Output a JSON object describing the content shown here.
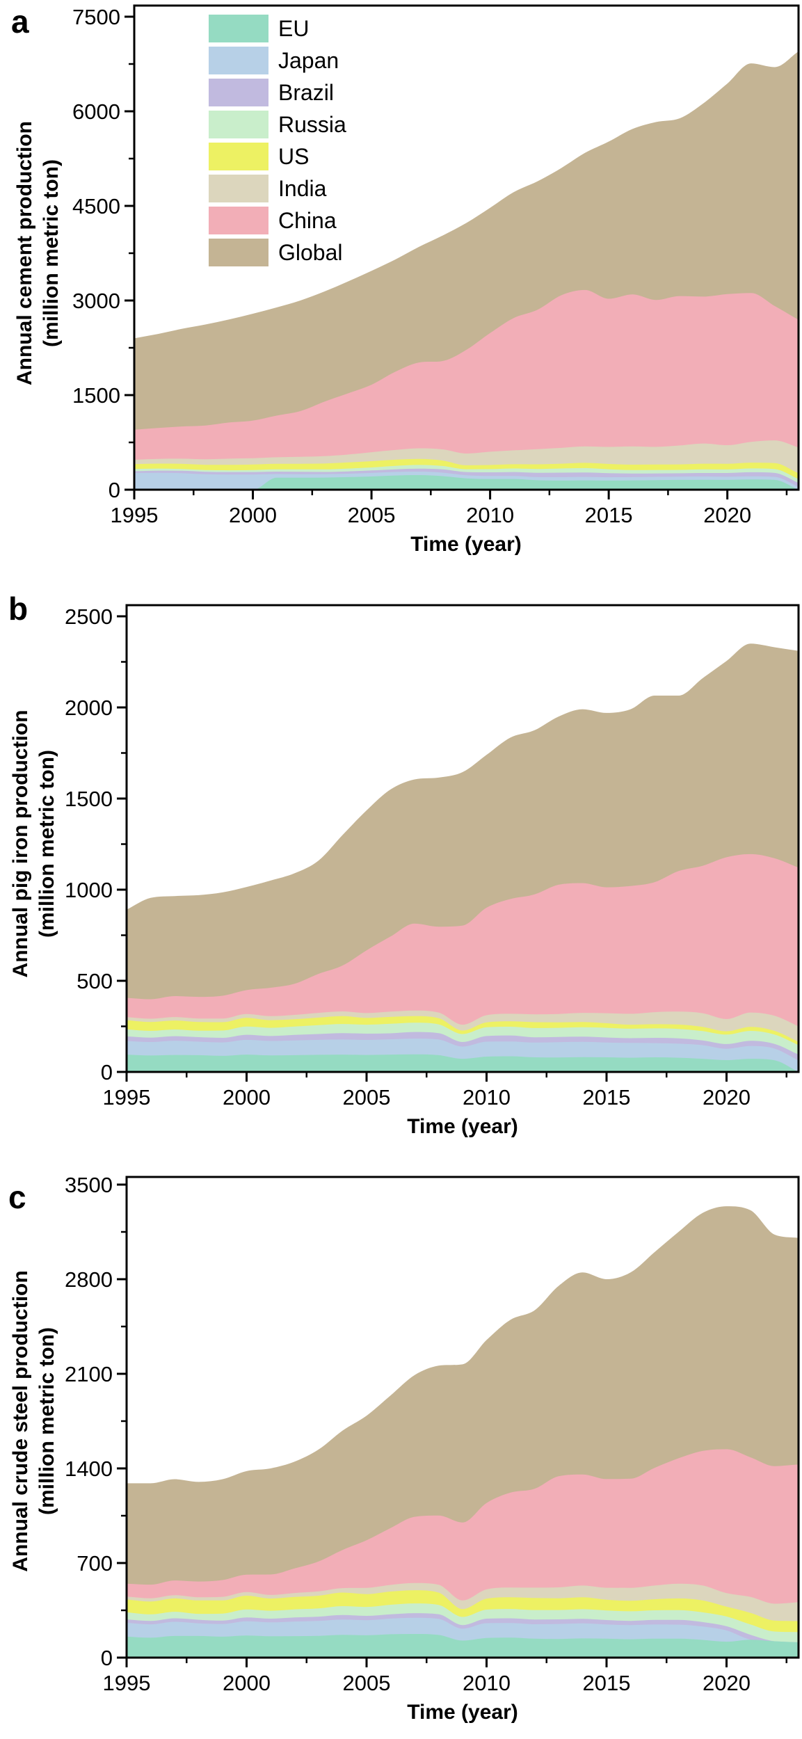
{
  "years": [
    1995,
    1996,
    1997,
    1998,
    1999,
    2000,
    2001,
    2002,
    2003,
    2004,
    2005,
    2006,
    2007,
    2008,
    2009,
    2010,
    2011,
    2012,
    2013,
    2014,
    2015,
    2016,
    2017,
    2018,
    2019,
    2020,
    2021,
    2022,
    2023
  ],
  "legend": {
    "items": [
      {
        "label": "EU",
        "color": "#95dbc2"
      },
      {
        "label": "Japan",
        "color": "#b7d0e7"
      },
      {
        "label": "Brazil",
        "color": "#c1badf"
      },
      {
        "label": "Russia",
        "color": "#c9eecb"
      },
      {
        "label": "US",
        "color": "#edf163"
      },
      {
        "label": "India",
        "color": "#dcd6bd"
      },
      {
        "label": "China",
        "color": "#f2aeb7"
      },
      {
        "label": "Global",
        "color": "#c4b494"
      }
    ]
  },
  "chart_data": [
    {
      "type": "area",
      "stacked": true,
      "panel_label": "a",
      "ylabel_line1": "Annual cement production",
      "ylabel_line2": "(million metric ton)",
      "xlabel": "Time (year)",
      "ylim": [
        0,
        7500
      ],
      "y_major_step": 1500,
      "y_minor_step": 750,
      "x_range": [
        1995,
        2023
      ],
      "x_major_ticks": [
        1995,
        2000,
        2005,
        2010,
        2015,
        2020
      ],
      "legend_position": "top-left-inside",
      "grid": false,
      "series": [
        {
          "name": "EU",
          "color": "#95dbc2",
          "values": [
            0,
            0,
            0,
            0,
            0,
            0,
            190,
            190,
            192,
            200,
            210,
            225,
            232,
            215,
            180,
            170,
            170,
            150,
            145,
            148,
            145,
            148,
            152,
            155,
            158,
            155,
            162,
            155,
            0
          ]
        },
        {
          "name": "Japan",
          "color": "#b7d0e7",
          "values": [
            265,
            268,
            262,
            245,
            240,
            240,
            58,
            56,
            55,
            54,
            56,
            56,
            55,
            55,
            48,
            47,
            47,
            50,
            55,
            55,
            52,
            52,
            52,
            52,
            52,
            50,
            50,
            48,
            45
          ]
        },
        {
          "name": "Brazil",
          "color": "#c1badf",
          "values": [
            28,
            34,
            38,
            40,
            40,
            40,
            39,
            38,
            34,
            36,
            39,
            42,
            46,
            52,
            52,
            59,
            63,
            68,
            70,
            71,
            65,
            57,
            54,
            53,
            55,
            60,
            65,
            63,
            62
          ]
        },
        {
          "name": "Russia",
          "color": "#c9eecb",
          "values": [
            36,
            33,
            28,
            26,
            28,
            32,
            35,
            38,
            41,
            45,
            48,
            54,
            60,
            54,
            44,
            50,
            56,
            61,
            66,
            69,
            62,
            55,
            55,
            54,
            58,
            56,
            60,
            61,
            62
          ]
        },
        {
          "name": "US",
          "color": "#edf163",
          "values": [
            76,
            79,
            82,
            84,
            86,
            88,
            89,
            89,
            93,
            97,
            99,
            98,
            95,
            86,
            63,
            66,
            68,
            74,
            77,
            83,
            84,
            85,
            86,
            87,
            89,
            90,
            92,
            95,
            91
          ]
        },
        {
          "name": "India",
          "color": "#dcd6bd",
          "values": [
            70,
            75,
            82,
            87,
            98,
            99,
            103,
            110,
            117,
            125,
            143,
            155,
            168,
            178,
            187,
            210,
            220,
            240,
            250,
            260,
            270,
            290,
            280,
            300,
            320,
            295,
            330,
            360,
            410
          ]
        },
        {
          "name": "China",
          "color": "#f2aeb7",
          "values": [
            476,
            490,
            511,
            536,
            573,
            597,
            661,
            725,
            862,
            970,
            1069,
            1240,
            1361,
            1400,
            1644,
            1882,
            2099,
            2210,
            2420,
            2480,
            2350,
            2410,
            2330,
            2370,
            2330,
            2395,
            2360,
            2130,
            2023
          ]
        },
        {
          "name": "Global",
          "color": "#c4b494",
          "values": [
            1449,
            1491,
            1547,
            1602,
            1635,
            1694,
            1715,
            1754,
            1746,
            1773,
            1806,
            1780,
            1833,
            1990,
            2012,
            1986,
            1997,
            2037,
            2017,
            2174,
            2492,
            2623,
            2821,
            2819,
            3068,
            3339,
            3641,
            3788,
            4257
          ]
        }
      ]
    },
    {
      "type": "area",
      "stacked": true,
      "panel_label": "b",
      "ylabel_line1": "Annual pig iron production",
      "ylabel_line2": "(million metric ton)",
      "xlabel": "Time (year)",
      "ylim": [
        0,
        2500
      ],
      "y_major_step": 500,
      "y_minor_step": 250,
      "x_range": [
        1995,
        2023
      ],
      "x_major_ticks": [
        1995,
        2000,
        2005,
        2010,
        2015,
        2020
      ],
      "grid": false,
      "series": [
        {
          "name": "EU",
          "color": "#95dbc2",
          "values": [
            95,
            90,
            93,
            92,
            88,
            95,
            91,
            92,
            94,
            95,
            93,
            95,
            96,
            92,
            72,
            84,
            86,
            80,
            79,
            81,
            80,
            78,
            80,
            78,
            72,
            65,
            72,
            64,
            0
          ]
        },
        {
          "name": "Japan",
          "color": "#b7d0e7",
          "values": [
            75,
            74,
            78,
            74,
            74,
            81,
            79,
            81,
            82,
            83,
            83,
            84,
            87,
            86,
            67,
            82,
            81,
            81,
            84,
            84,
            81,
            81,
            78,
            77,
            75,
            62,
            70,
            64,
            63
          ]
        },
        {
          "name": "Brazil",
          "color": "#c1badf",
          "values": [
            25,
            24,
            25,
            25,
            25,
            28,
            27,
            30,
            32,
            35,
            34,
            33,
            36,
            35,
            25,
            31,
            33,
            29,
            29,
            29,
            28,
            26,
            29,
            29,
            26,
            26,
            29,
            26,
            32
          ]
        },
        {
          "name": "Russia",
          "color": "#c9eecb",
          "values": [
            39,
            37,
            37,
            35,
            40,
            45,
            45,
            46,
            49,
            50,
            49,
            52,
            51,
            48,
            44,
            48,
            48,
            51,
            50,
            51,
            53,
            52,
            52,
            52,
            51,
            52,
            54,
            51,
            52
          ]
        },
        {
          "name": "US",
          "color": "#edf163",
          "values": [
            50,
            49,
            49,
            48,
            46,
            48,
            42,
            40,
            41,
            43,
            37,
            38,
            36,
            34,
            19,
            27,
            30,
            32,
            30,
            29,
            25,
            22,
            23,
            24,
            23,
            18,
            22,
            20,
            18
          ]
        },
        {
          "name": "India",
          "color": "#dcd6bd",
          "values": [
            17,
            18,
            19,
            19,
            20,
            21,
            22,
            24,
            26,
            26,
            27,
            29,
            31,
            31,
            32,
            39,
            41,
            43,
            46,
            50,
            55,
            60,
            66,
            71,
            75,
            67,
            79,
            83,
            85
          ]
        },
        {
          "name": "China",
          "color": "#f2aeb7",
          "values": [
            105,
            107,
            115,
            119,
            125,
            131,
            156,
            171,
            214,
            252,
            344,
            412,
            477,
            471,
            544,
            590,
            630,
            658,
            709,
            712,
            691,
            701,
            713,
            771,
            809,
            888,
            869,
            864,
            871
          ]
        },
        {
          "name": "Global",
          "color": "#c4b494",
          "values": [
            484,
            556,
            549,
            558,
            567,
            566,
            588,
            606,
            622,
            716,
            768,
            807,
            791,
            818,
            842,
            839,
            886,
            901,
            923,
            954,
            957,
            970,
            1024,
            963,
            1029,
            1077,
            1155,
            1158,
            1189
          ]
        }
      ]
    },
    {
      "type": "area",
      "stacked": true,
      "panel_label": "c",
      "ylabel_line1": "Annual crude steel production",
      "ylabel_line2": "(million metric ton)",
      "xlabel": "Time (year)",
      "ylim": [
        0,
        3500
      ],
      "y_major_step": 700,
      "y_minor_step": 350,
      "x_range": [
        1995,
        2023
      ],
      "x_major_ticks": [
        1995,
        2000,
        2005,
        2010,
        2015,
        2020
      ],
      "grid": false,
      "series": [
        {
          "name": "EU",
          "color": "#95dbc2",
          "values": [
            156,
            147,
            160,
            160,
            155,
            163,
            158,
            159,
            161,
            169,
            165,
            173,
            175,
            168,
            126,
            145,
            148,
            140,
            138,
            142,
            140,
            136,
            140,
            140,
            131,
            118,
            133,
            121,
            113
          ]
        },
        {
          "name": "Japan",
          "color": "#b7d0e7",
          "values": [
            102,
            99,
            105,
            94,
            94,
            106,
            103,
            108,
            111,
            113,
            112,
            116,
            120,
            119,
            88,
            110,
            108,
            107,
            111,
            111,
            105,
            105,
            105,
            104,
            99,
            83,
            0,
            0,
            0
          ]
        },
        {
          "name": "Brazil",
          "color": "#c1badf",
          "values": [
            25,
            25,
            26,
            26,
            25,
            28,
            27,
            30,
            31,
            33,
            32,
            31,
            34,
            34,
            27,
            33,
            35,
            35,
            34,
            34,
            33,
            31,
            34,
            35,
            33,
            31,
            36,
            0,
            0
          ]
        },
        {
          "name": "Russia",
          "color": "#c9eecb",
          "values": [
            52,
            49,
            48,
            44,
            52,
            59,
            59,
            60,
            61,
            66,
            66,
            71,
            72,
            69,
            60,
            67,
            69,
            70,
            69,
            71,
            71,
            71,
            71,
            72,
            72,
            72,
            76,
            72,
            76
          ]
        },
        {
          "name": "US",
          "color": "#edf163",
          "values": [
            95,
            95,
            99,
            99,
            97,
            102,
            90,
            92,
            94,
            100,
            95,
            98,
            98,
            91,
            58,
            81,
            86,
            89,
            87,
            88,
            79,
            78,
            82,
            87,
            88,
            73,
            86,
            81,
            81
          ]
        },
        {
          "name": "India",
          "color": "#dcd6bd",
          "values": [
            22,
            24,
            24,
            24,
            27,
            27,
            27,
            29,
            32,
            33,
            46,
            49,
            53,
            58,
            64,
            69,
            73,
            77,
            81,
            87,
            89,
            95,
            101,
            109,
            111,
            100,
            118,
            125,
            140
          ]
        },
        {
          "name": "China",
          "color": "#f2aeb7",
          "values": [
            95,
            101,
            109,
            116,
            124,
            129,
            151,
            182,
            222,
            283,
            353,
            421,
            490,
            512,
            577,
            639,
            702,
            731,
            822,
            822,
            804,
            808,
            871,
            928,
            995,
            1065,
            1033,
            1018,
            1019
          ]
        },
        {
          "name": "Global",
          "color": "#c4b494",
          "values": [
            743,
            750,
            749,
            737,
            746,
            766,
            785,
            790,
            828,
            883,
            921,
            981,
            1048,
            1109,
            1170,
            1206,
            1279,
            1321,
            1408,
            1495,
            1479,
            1526,
            1596,
            1675,
            1761,
            1798,
            1828,
            1713,
            1676
          ]
        }
      ]
    }
  ]
}
